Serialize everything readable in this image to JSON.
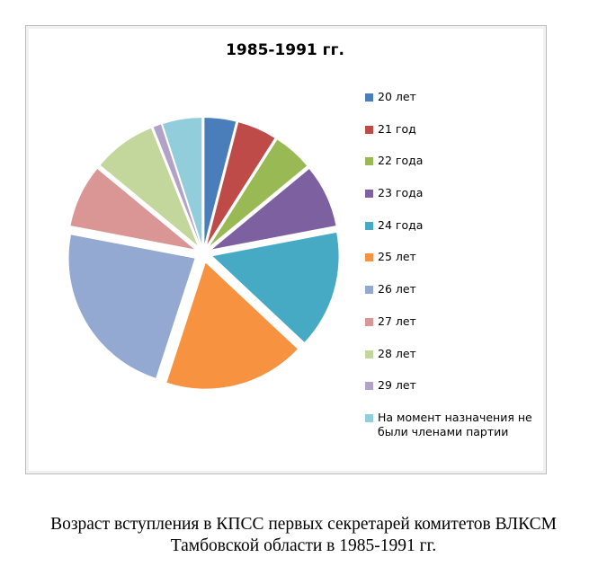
{
  "chart_data": {
    "type": "pie",
    "title": "1985-1991 гг.",
    "categories": [
      "20 лет",
      "21 год",
      "22 года",
      "23 года",
      "24 года",
      "25 лет",
      "26 лет",
      "27 лет",
      "28 лет",
      "29 лет",
      "На момент назначения не были членами партии"
    ],
    "values": [
      4,
      5,
      5,
      8,
      15,
      18,
      23,
      8,
      8,
      1,
      5
    ],
    "colors": [
      "#4a7ebb",
      "#be4b48",
      "#98b954",
      "#7d60a0",
      "#46aac5",
      "#f69240",
      "#94a9d2",
      "#d99694",
      "#c3d69b",
      "#b3a2c7",
      "#92cddc"
    ],
    "legend": "right"
  },
  "caption": "Возраст вступления в КПСС первых секретарей комитетов ВЛКСМ Тамбовской области в 1985-1991 гг."
}
